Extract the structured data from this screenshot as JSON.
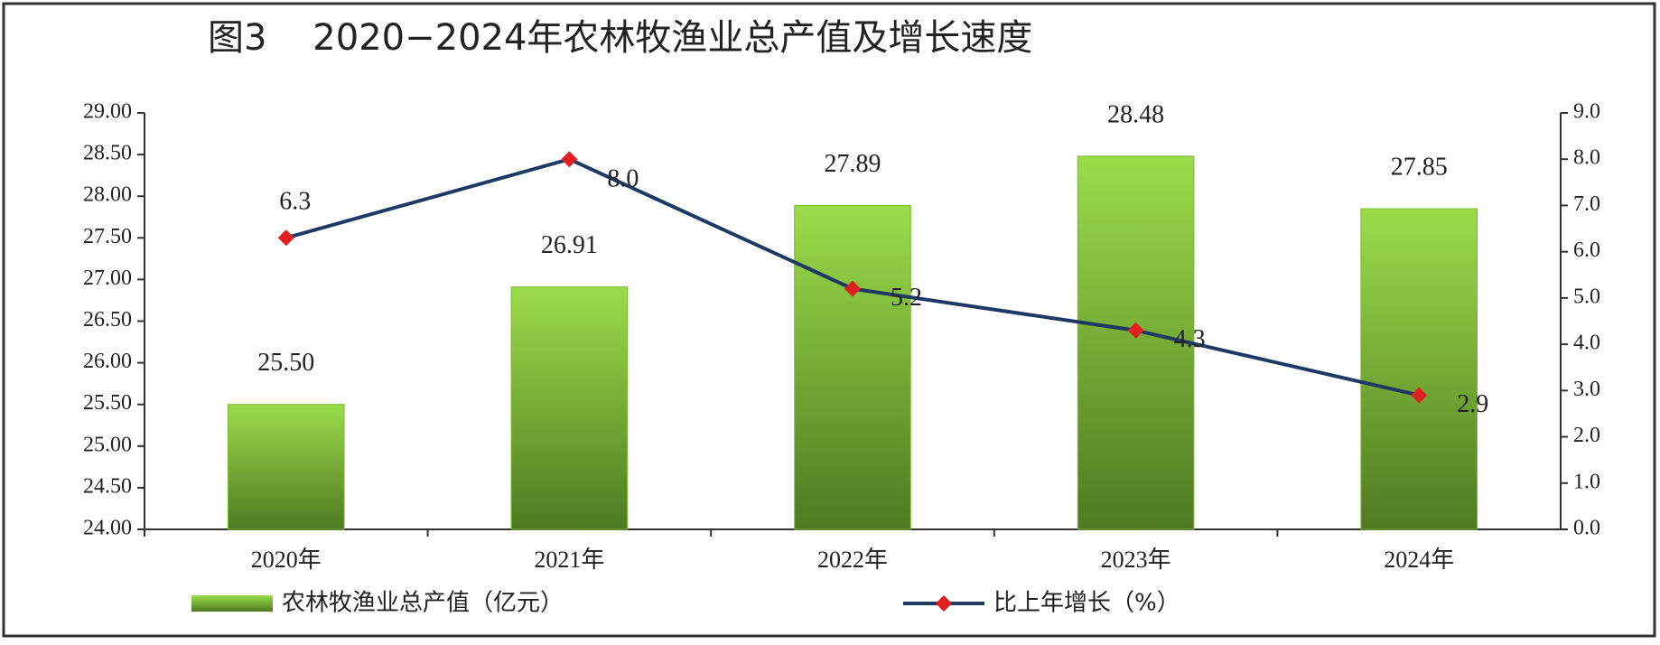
{
  "chart_data": {
    "type": "bar",
    "title": "图3    2020−2024年农林牧渔业总产值及增长速度",
    "categories": [
      "2020年",
      "2021年",
      "2022年",
      "2023年",
      "2024年"
    ],
    "series": [
      {
        "name": "农林牧渔业总产值（亿元）",
        "type": "bar",
        "color": "#7cb82f",
        "values": [
          25.5,
          26.91,
          27.89,
          28.48,
          27.85
        ],
        "value_labels": [
          "25.50",
          "26.91",
          "27.89",
          "28.48",
          "27.85"
        ]
      },
      {
        "name": "比上年增长（%）",
        "type": "line",
        "axis": "y2",
        "color": "#1f3864",
        "marker_color": "#e02020",
        "values": [
          6.3,
          8.0,
          5.2,
          4.3,
          2.9
        ],
        "value_labels": [
          "6.3",
          "8.0",
          "5.2",
          "4.3",
          "2.9"
        ]
      }
    ],
    "ylim": [
      24,
      29
    ],
    "yticks": [
      {
        "value": 24,
        "label": "24.00"
      },
      {
        "value": 24.5,
        "label": "24.50"
      },
      {
        "value": 25,
        "label": "25.00"
      },
      {
        "value": 25.5,
        "label": "25.50"
      },
      {
        "value": 26,
        "label": "26.00"
      },
      {
        "value": 26.5,
        "label": "26.50"
      },
      {
        "value": 27,
        "label": "27.00"
      },
      {
        "value": 27.5,
        "label": "27.50"
      },
      {
        "value": 28,
        "label": "28.00"
      },
      {
        "value": 28.5,
        "label": "28.50"
      },
      {
        "value": 29,
        "label": "29.00"
      }
    ],
    "y2lim": [
      0,
      9
    ],
    "y2ticks": [
      {
        "value": 0,
        "label": "0.0"
      },
      {
        "value": 1,
        "label": "1.0"
      },
      {
        "value": 2,
        "label": "2.0"
      },
      {
        "value": 3,
        "label": "3.0"
      },
      {
        "value": 4,
        "label": "4.0"
      },
      {
        "value": 5,
        "label": "5.0"
      },
      {
        "value": 6,
        "label": "6.0"
      },
      {
        "value": 7,
        "label": "7.0"
      },
      {
        "value": 8,
        "label": "8.0"
      },
      {
        "value": 9,
        "label": "9.0"
      }
    ],
    "grid": false,
    "legend": "bottom"
  }
}
